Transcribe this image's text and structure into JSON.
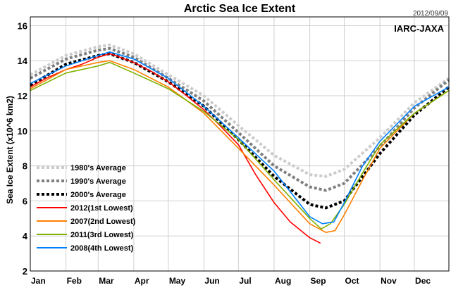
{
  "chart_data": {
    "type": "line",
    "title": "Arctic Sea Ice Extent",
    "date_stamp": "2012/09/09",
    "source_label": "IARC-JAXA",
    "ylabel": "Sea Ice Extent (x10^6 km2)",
    "xlabel": "",
    "ylim": [
      2,
      16.5
    ],
    "yticks": [
      2,
      4,
      6,
      8,
      10,
      12,
      14,
      16
    ],
    "x_unit": "day of year",
    "xlim": [
      1,
      365
    ],
    "month_labels": [
      "Jan",
      "Feb",
      "Mar",
      "Apr",
      "May",
      "Jun",
      "Jul",
      "Aug",
      "Sep",
      "Oct",
      "Nov",
      "Dec"
    ],
    "grid": true,
    "legend_position": "bottom-left",
    "series": [
      {
        "name": "1980's Average",
        "color": "#cccccc",
        "style": "dotted",
        "x": [
          1,
          32,
          60,
          70,
          91,
          121,
          152,
          182,
          213,
          244,
          258,
          274,
          305,
          335,
          365
        ],
        "y": [
          13.2,
          14.3,
          14.8,
          14.9,
          14.4,
          13.2,
          12.0,
          10.3,
          8.6,
          7.5,
          7.4,
          7.8,
          9.6,
          11.6,
          13.0
        ]
      },
      {
        "name": "1990's Average",
        "color": "#7f7f7f",
        "style": "dotted",
        "x": [
          1,
          32,
          60,
          70,
          91,
          121,
          152,
          182,
          213,
          244,
          258,
          274,
          305,
          335,
          365
        ],
        "y": [
          13.0,
          14.1,
          14.6,
          14.7,
          14.2,
          13.0,
          11.7,
          9.9,
          8.0,
          6.8,
          6.6,
          7.0,
          9.1,
          11.3,
          12.9
        ]
      },
      {
        "name": "2000's Average",
        "color": "#000000",
        "style": "dotted",
        "x": [
          1,
          32,
          60,
          70,
          91,
          121,
          152,
          182,
          213,
          244,
          258,
          274,
          305,
          335,
          365
        ],
        "y": [
          12.6,
          13.8,
          14.3,
          14.4,
          13.9,
          12.8,
          11.4,
          9.5,
          7.4,
          5.8,
          5.6,
          6.0,
          8.7,
          10.9,
          12.5
        ]
      },
      {
        "name": "2012(1st Lowest)",
        "color": "#ff0000",
        "style": "solid",
        "x": [
          1,
          15,
          32,
          46,
          60,
          70,
          75,
          91,
          106,
          121,
          135,
          152,
          166,
          182,
          197,
          213,
          227,
          244,
          253
        ],
        "y": [
          12.5,
          13.0,
          13.5,
          13.8,
          14.2,
          14.4,
          14.3,
          13.9,
          13.4,
          12.8,
          12.1,
          11.2,
          10.3,
          9.2,
          7.5,
          5.9,
          4.8,
          3.9,
          3.6
        ]
      },
      {
        "name": "2007(2nd Lowest)",
        "color": "#ff8000",
        "style": "solid",
        "x": [
          1,
          32,
          60,
          70,
          91,
          121,
          152,
          182,
          213,
          244,
          258,
          266,
          274,
          290,
          305,
          335,
          365
        ],
        "y": [
          12.4,
          13.5,
          13.9,
          14.0,
          13.5,
          12.5,
          11.0,
          9.0,
          6.9,
          4.7,
          4.2,
          4.3,
          5.2,
          7.2,
          9.0,
          11.0,
          12.3
        ]
      },
      {
        "name": "2011(3rd Lowest)",
        "color": "#80b000",
        "style": "solid",
        "x": [
          1,
          32,
          60,
          70,
          91,
          121,
          152,
          182,
          213,
          244,
          254,
          262,
          274,
          290,
          305,
          335,
          365
        ],
        "y": [
          12.3,
          13.3,
          13.7,
          13.9,
          13.3,
          12.4,
          11.1,
          9.5,
          7.2,
          5.0,
          4.4,
          4.7,
          5.8,
          7.6,
          9.2,
          11.0,
          12.3
        ]
      },
      {
        "name": "2008(4th Lowest)",
        "color": "#0080ff",
        "style": "solid",
        "x": [
          1,
          32,
          60,
          70,
          91,
          121,
          152,
          182,
          213,
          244,
          255,
          265,
          274,
          290,
          305,
          335,
          365
        ],
        "y": [
          12.7,
          13.7,
          14.3,
          14.5,
          14.1,
          13.0,
          11.4,
          9.6,
          7.7,
          5.1,
          4.7,
          4.8,
          5.9,
          8.0,
          9.4,
          11.4,
          12.5
        ]
      }
    ]
  }
}
